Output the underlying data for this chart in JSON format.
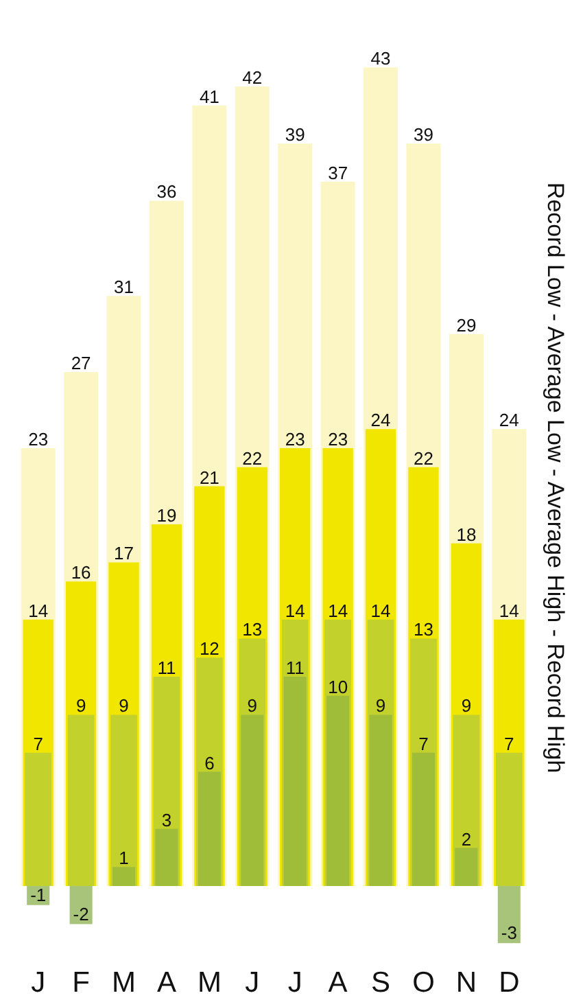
{
  "chart_data": {
    "type": "bar",
    "ylabel": "Record Low - Average Low - Average High - Record High",
    "categories": [
      "J",
      "F",
      "M",
      "A",
      "M",
      "J",
      "J",
      "A",
      "S",
      "O",
      "N",
      "D"
    ],
    "data_labels": true,
    "series": [
      {
        "color": "#fbf6c3",
        "values": [
          23,
          27,
          31,
          36,
          41,
          42,
          39,
          37,
          43,
          39,
          29,
          24
        ]
      },
      {
        "color": "#f0e600",
        "values": [
          14,
          16,
          17,
          19,
          21,
          22,
          23,
          23,
          24,
          22,
          18,
          14
        ]
      },
      {
        "color": "#c3d12c",
        "values": [
          7,
          9,
          9,
          11,
          12,
          13,
          14,
          14,
          14,
          13,
          9,
          7
        ]
      },
      {
        "colors": [
          "#a8c47a",
          "#a8c47a",
          "#a0bd3a",
          "#a0bd3a",
          "#a0bd3a",
          "#a0bd3a",
          "#a0bd3a",
          "#a0bd3a",
          "#a0bd3a",
          "#a0bd3a",
          "#a0bd3a",
          "#a8c47a"
        ],
        "values": [
          -1,
          -2,
          1,
          3,
          6,
          9,
          11,
          10,
          9,
          7,
          2,
          -3
        ]
      }
    ]
  }
}
